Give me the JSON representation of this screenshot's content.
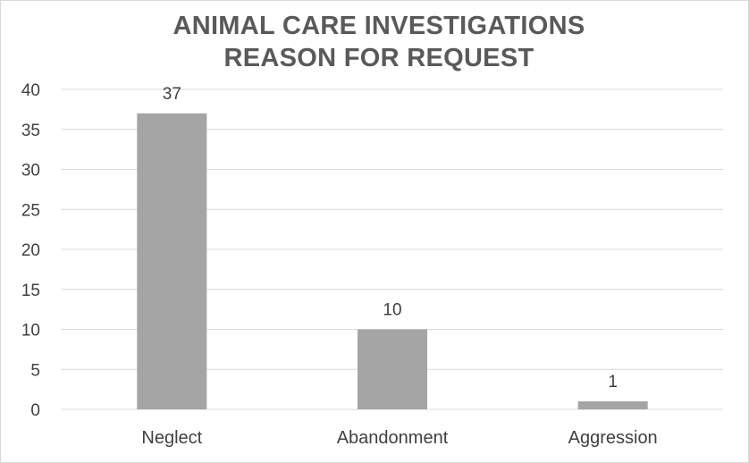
{
  "chart_data": {
    "type": "bar",
    "title_lines": [
      "ANIMAL CARE INVESTIGATIONS",
      "REASON FOR REQUEST"
    ],
    "categories": [
      "Neglect",
      "Abandonment",
      "Aggression"
    ],
    "values": [
      37,
      10,
      1
    ],
    "data_labels": [
      "37",
      "10",
      "1"
    ],
    "ylim": [
      0,
      40
    ],
    "yticks": [
      0,
      5,
      10,
      15,
      20,
      25,
      30,
      35,
      40
    ],
    "xlabel": "",
    "ylabel": "",
    "grid": true,
    "legend": "none",
    "bar_color": "#a5a5a5",
    "grid_color": "#d9d9d9",
    "text_color": "#404040",
    "title_color": "#595959"
  }
}
